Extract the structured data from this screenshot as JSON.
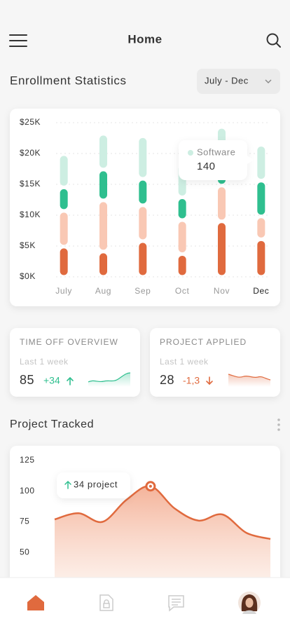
{
  "header": {
    "title": "Home"
  },
  "enrollment": {
    "title": "Enrollment Statistics",
    "period": "July - Dec",
    "tooltip": {
      "label": "Software",
      "value": "140"
    },
    "chart_data": {
      "type": "stacked-bar",
      "categories": [
        "July",
        "Aug",
        "Sep",
        "Oct",
        "Nov",
        "Dec"
      ],
      "highlight": 5,
      "series": [
        {
          "color": "#e06a3e",
          "values": [
            4900,
            4100,
            5800,
            3700,
            9000,
            6100
          ]
        },
        {
          "color": "#f9c8b4",
          "values": [
            5800,
            8300,
            5800,
            5500,
            5800,
            3700
          ]
        },
        {
          "color": "#2fbf8f",
          "values": [
            3800,
            5000,
            4300,
            3700,
            3500,
            5800
          ]
        },
        {
          "color": "#cdeee2",
          "values": [
            5400,
            5800,
            6900,
            5500,
            6000,
            5800
          ]
        }
      ],
      "ylim": [
        0,
        25000
      ],
      "yticks": [
        {
          "value": 0,
          "label": "$0K"
        },
        {
          "value": 5000,
          "label": "$5K"
        },
        {
          "value": 10000,
          "label": "$10K"
        },
        {
          "value": 15000,
          "label": "$15K"
        },
        {
          "value": 20000,
          "label": "$20K"
        },
        {
          "value": 25000,
          "label": "$25K"
        }
      ],
      "grid": true
    }
  },
  "time_off": {
    "title": "TIME OFF OVERVIEW",
    "period": "Last 1 week",
    "value": "85",
    "change": "+34"
  },
  "project_applied": {
    "title": "PROJECT APPLIED",
    "period": "Last 1 week",
    "value": "28",
    "change": "-1,3"
  },
  "project_tracked": {
    "title": "Project Tracked",
    "tooltip": "34 project",
    "chart_data": {
      "type": "area",
      "values": [
        77,
        82,
        75,
        93,
        104,
        86,
        76,
        81,
        66,
        61
      ],
      "highlight": 4,
      "color": "#e06a3e",
      "ylim": [
        25,
        125
      ],
      "yticks": [
        50,
        75,
        100,
        125
      ],
      "grid": false
    }
  }
}
